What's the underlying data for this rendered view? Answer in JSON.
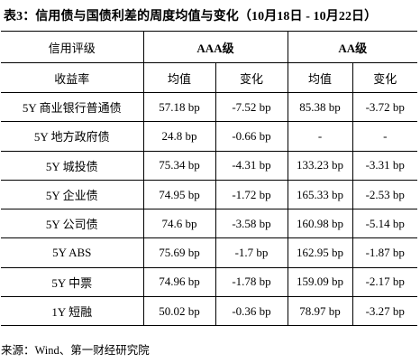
{
  "title": "表3：信用债与国债利差的周度均值与变化（10月18日 - 10月22日）",
  "header": {
    "rating_label": "信用评级",
    "yield_label": "收益率",
    "aaa": "AAA级",
    "aa": "AA级",
    "mean": "均值",
    "change": "变化"
  },
  "rows": [
    {
      "name": "5Y 商业银行普通债",
      "aaa_mean": "57.18 bp",
      "aaa_change": "-7.52 bp",
      "aa_mean": "85.38 bp",
      "aa_change": "-3.72 bp"
    },
    {
      "name": "5Y 地方政府债",
      "aaa_mean": "24.8 bp",
      "aaa_change": "-0.66 bp",
      "aa_mean": "-",
      "aa_change": "-"
    },
    {
      "name": "5Y 城投债",
      "aaa_mean": "75.34 bp",
      "aaa_change": "-4.31 bp",
      "aa_mean": "133.23 bp",
      "aa_change": "-3.31 bp"
    },
    {
      "name": "5Y 企业债",
      "aaa_mean": "74.95 bp",
      "aaa_change": "-1.72 bp",
      "aa_mean": "165.33 bp",
      "aa_change": "-2.53 bp"
    },
    {
      "name": "5Y 公司债",
      "aaa_mean": "74.6 bp",
      "aaa_change": "-3.58 bp",
      "aa_mean": "160.98 bp",
      "aa_change": "-5.14 bp"
    },
    {
      "name": "5Y ABS",
      "aaa_mean": "75.69 bp",
      "aaa_change": "-1.7 bp",
      "aa_mean": "162.95 bp",
      "aa_change": "-1.87 bp"
    },
    {
      "name": "5Y 中票",
      "aaa_mean": "74.96 bp",
      "aaa_change": "-1.78 bp",
      "aa_mean": "159.09 bp",
      "aa_change": "-2.17 bp"
    },
    {
      "name": "1Y 短融",
      "aaa_mean": "50.02 bp",
      "aaa_change": "-0.36 bp",
      "aa_mean": "78.97 bp",
      "aa_change": "-3.27 bp"
    }
  ],
  "source": "来源：Wind、第一财经研究院"
}
